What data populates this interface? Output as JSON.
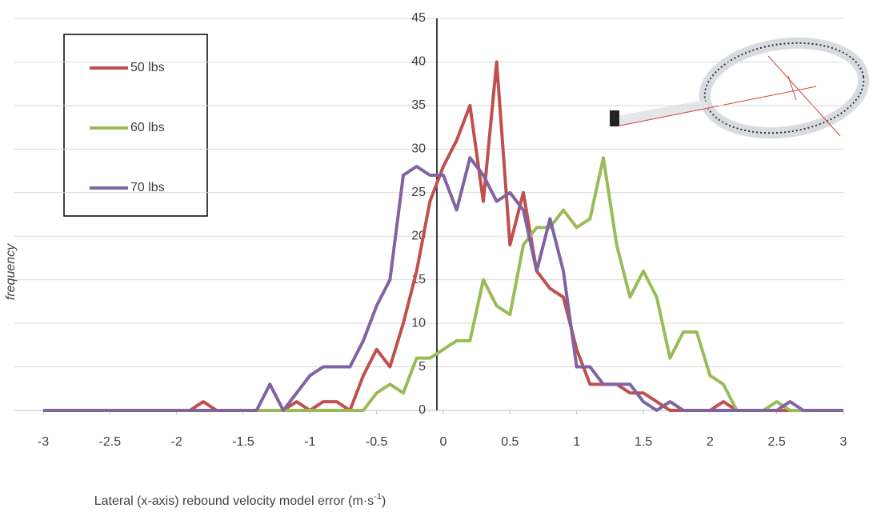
{
  "chart_data": {
    "type": "line",
    "x_label": "Lateral (x-axis) rebound velocity model error (m·s",
    "x_label_sup": "-1",
    "x_label_end": ")",
    "y_label": "frequency",
    "x": [
      -3,
      -2.9,
      -2.8,
      -2.7,
      -2.6,
      -2.5,
      -2.4,
      -2.3,
      -2.2,
      -2.1,
      -2,
      -1.9,
      -1.8,
      -1.7,
      -1.6,
      -1.5,
      -1.4,
      -1.3,
      -1.2,
      -1.1,
      -1,
      -0.9,
      -0.8,
      -0.7,
      -0.6,
      -0.5,
      -0.4,
      -0.3,
      -0.2,
      -0.1,
      0,
      0.1,
      0.2,
      0.3,
      0.4,
      0.5,
      0.6,
      0.7,
      0.8,
      0.9,
      1,
      1.1,
      1.2,
      1.3,
      1.4,
      1.5,
      1.6,
      1.7,
      1.8,
      1.9,
      2,
      2.1,
      2.2,
      2.3,
      2.4,
      2.5,
      2.6,
      2.7,
      2.8,
      2.9,
      3
    ],
    "series": [
      {
        "name": "50 lbs",
        "color": "#c0504d",
        "values": [
          0,
          0,
          0,
          0,
          0,
          0,
          0,
          0,
          0,
          0,
          0,
          0,
          1,
          0,
          0,
          0,
          0,
          0,
          0,
          1,
          0,
          1,
          1,
          0,
          4,
          7,
          5,
          10,
          16,
          24,
          28,
          31,
          35,
          24,
          40,
          19,
          25,
          16,
          14,
          13,
          7,
          3,
          3,
          3,
          2,
          2,
          1,
          0,
          0,
          0,
          0,
          1,
          0,
          0,
          0,
          0,
          0,
          0,
          0,
          0,
          0
        ]
      },
      {
        "name": "60 lbs",
        "color": "#9bbb59",
        "values": [
          0,
          0,
          0,
          0,
          0,
          0,
          0,
          0,
          0,
          0,
          0,
          0,
          0,
          0,
          0,
          0,
          0,
          0,
          0,
          0,
          0,
          0,
          0,
          0,
          0,
          2,
          3,
          2,
          6,
          6,
          7,
          8,
          8,
          15,
          12,
          11,
          19,
          21,
          21,
          23,
          21,
          22,
          29,
          19,
          13,
          16,
          13,
          6,
          9,
          9,
          4,
          3,
          0,
          0,
          0,
          1,
          0,
          0,
          0,
          0,
          0
        ]
      },
      {
        "name": "70 lbs",
        "color": "#8064a2",
        "values": [
          0,
          0,
          0,
          0,
          0,
          0,
          0,
          0,
          0,
          0,
          0,
          0,
          0,
          0,
          0,
          0,
          0,
          3,
          0,
          2,
          4,
          5,
          5,
          5,
          8,
          12,
          15,
          27,
          28,
          27,
          27,
          23,
          29,
          27,
          24,
          25,
          23,
          16,
          22,
          16,
          5,
          5,
          3,
          3,
          3,
          1,
          0,
          1,
          0,
          0,
          0,
          0,
          0,
          0,
          0,
          0,
          1,
          0,
          0,
          0,
          0
        ]
      }
    ],
    "xlim": [
      -3,
      3
    ],
    "xticks": [
      -3,
      -2.5,
      -2,
      -1.5,
      -1,
      -0.5,
      0,
      0.5,
      1,
      1.5,
      2,
      2.5,
      3
    ],
    "ylim": [
      0,
      45
    ],
    "yticks": [
      0,
      5,
      10,
      15,
      20,
      25,
      30,
      35,
      40,
      45
    ],
    "grid": true
  }
}
